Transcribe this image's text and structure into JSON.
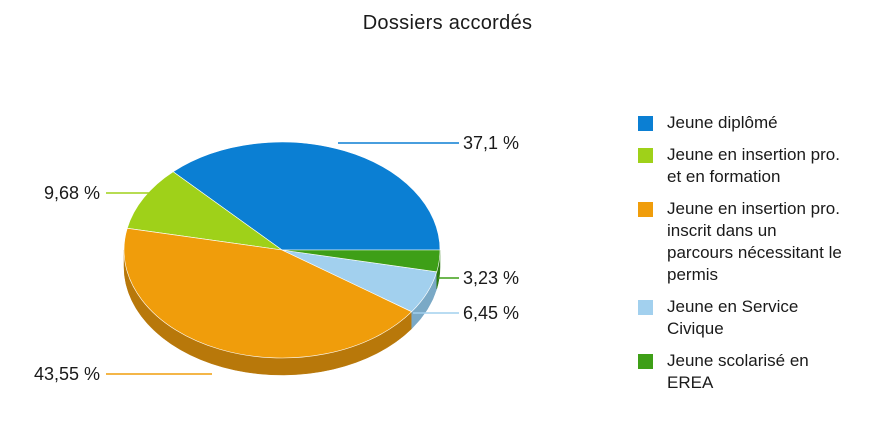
{
  "chart_data": {
    "type": "pie",
    "title": "Dossiers accordés",
    "categories": [
      "Jeune diplômé",
      "Jeune en insertion pro. et en formation",
      "Jeune en insertion pro. inscrit dans un parcours nécessitant le permis",
      "Jeune en Service Civique",
      "Jeune scolarisé en EREA"
    ],
    "legend_display": [
      "Jeune diplômé",
      "Jeune en insertion pro.\net en formation",
      "Jeune en insertion pro.\ninscrit dans un\nparcours nécessitant le\npermis",
      "Jeune en Service\nCivique",
      "Jeune scolarisé en\nEREA"
    ],
    "values": [
      37.1,
      9.68,
      43.55,
      6.45,
      3.23
    ],
    "value_labels": [
      "37,1 %",
      "9,68 %",
      "43,55 %",
      "6,45 %",
      "3,23 %"
    ],
    "colors": [
      "#0b7fd3",
      "#9fd119",
      "#f09d0b",
      "#a2d0ee",
      "#3e9f17"
    ],
    "side_colors": [
      "#08609e",
      "#78a010",
      "#b8780a",
      "#7aa9c6",
      "#2d7a10"
    ],
    "style": "3d",
    "legend_position": "right"
  }
}
